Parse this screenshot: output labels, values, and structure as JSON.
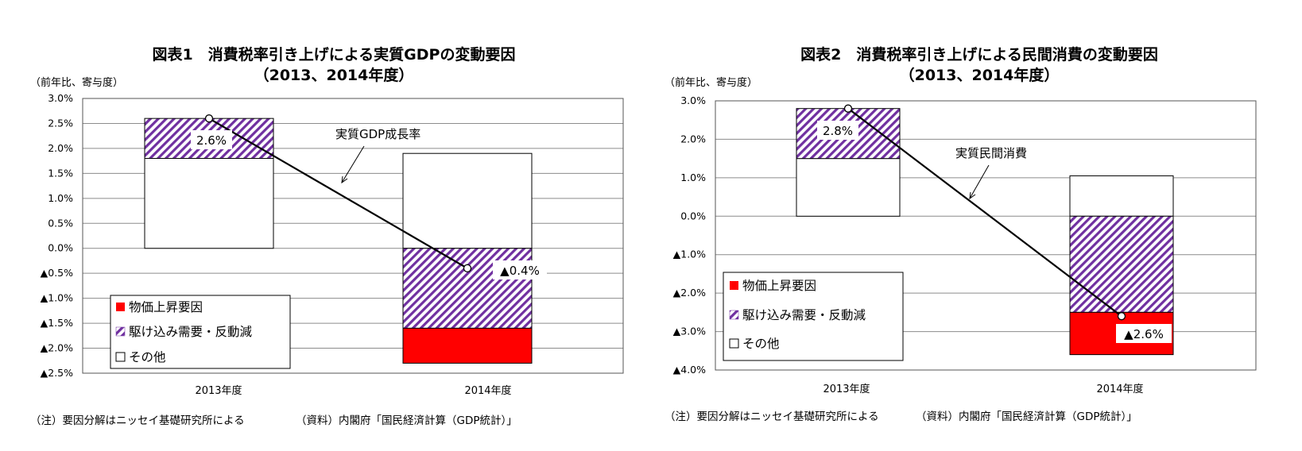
{
  "charts": [
    {
      "title": "図表1　消費税率引き上げによる実質GDPの変動要因",
      "subtitle": "（2013、2014年度）",
      "unit_label": "（前年比、寄与度）",
      "note": "（注）要因分解はニッセイ基礎研究所による",
      "source": "（資料）内閣府「国民経済計算（GDP統計）」",
      "line_label": "実質GDP成長率",
      "legend": [
        "物価上昇要因",
        "駆け込み需要・反動減",
        "その他"
      ],
      "tick_labels": [
        "3.0%",
        "2.5%",
        "2.0%",
        "1.5%",
        "1.0%",
        "0.5%",
        "0.0%",
        "▲0.5%",
        "▲1.0%",
        "▲1.5%",
        "▲2.0%",
        "▲2.5%"
      ],
      "value_labels": [
        "2.6%",
        "▲0.4%"
      ]
    },
    {
      "title": "図表2　消費税率引き上げによる民間消費の変動要因",
      "subtitle": "（2013、2014年度）",
      "unit_label": "（前年比、寄与度）",
      "note": "（注）要因分解はニッセイ基礎研究所による",
      "source": "（資料）内閣府「国民経済計算（GDP統計）」",
      "line_label": "実質民間消費",
      "legend": [
        "物価上昇要因",
        "駆け込み需要・反動減",
        "その他"
      ],
      "tick_labels": [
        "3.0%",
        "2.0%",
        "1.0%",
        "0.0%",
        "▲1.0%",
        "▲2.0%",
        "▲3.0%",
        "▲4.0%"
      ],
      "value_labels": [
        "2.8%",
        "▲2.6%"
      ]
    }
  ],
  "chart_data": [
    {
      "type": "bar",
      "stacked": true,
      "title": "図表1　消費税率引き上げによる実質GDPの変動要因",
      "categories": [
        "2013年度",
        "2014年度"
      ],
      "series": [
        {
          "name": "物価上昇要因",
          "values": [
            0.0,
            -0.7
          ],
          "color": "#ff0000"
        },
        {
          "name": "駆け込み需要・反動減",
          "values": [
            0.8,
            -1.6
          ],
          "color": "#7030a0"
        },
        {
          "name": "その他",
          "values": [
            1.8,
            1.9
          ],
          "color": "#ffffff"
        }
      ],
      "line": {
        "name": "実質GDP成長率",
        "values": [
          2.6,
          -0.4
        ]
      },
      "ylim": [
        -2.5,
        3.0
      ],
      "ytick_step": 0.5,
      "grid": true,
      "legend_position": "bottom-left"
    },
    {
      "type": "bar",
      "stacked": true,
      "title": "図表2　消費税率引き上げによる民間消費の変動要因",
      "categories": [
        "2013年度",
        "2014年度"
      ],
      "series": [
        {
          "name": "物価上昇要因",
          "values": [
            0.0,
            -1.1
          ],
          "color": "#ff0000"
        },
        {
          "name": "駆け込み需要・反動減",
          "values": [
            1.3,
            -2.5
          ],
          "color": "#7030a0"
        },
        {
          "name": "その他",
          "values": [
            1.5,
            1.05
          ],
          "color": "#ffffff"
        }
      ],
      "line": {
        "name": "実質民間消費",
        "values": [
          2.8,
          -2.6
        ]
      },
      "ylim": [
        -4.0,
        3.0
      ],
      "ytick_step": 1.0,
      "grid": true,
      "legend_position": "bottom-left"
    }
  ]
}
